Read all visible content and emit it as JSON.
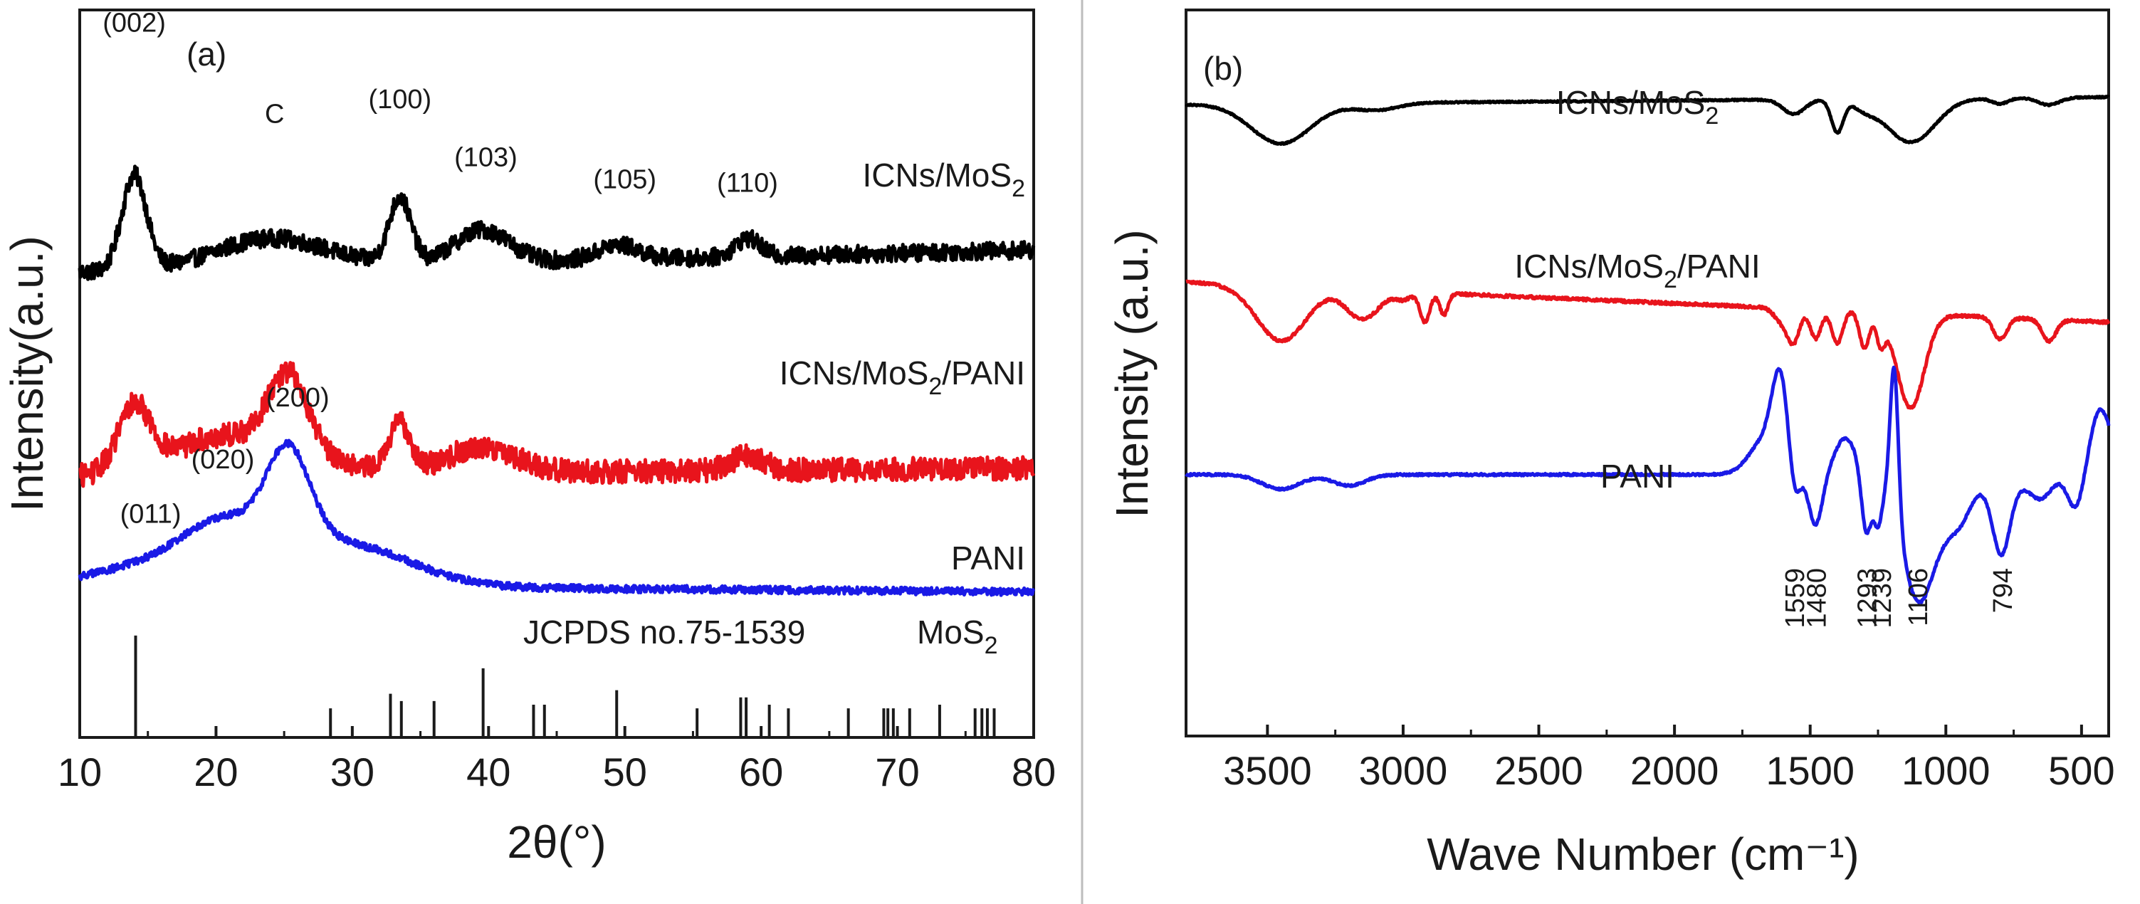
{
  "figure": {
    "divider_color": "#bdbdbd"
  },
  "chart_data": [
    {
      "type": "line",
      "panel_label": "(a)",
      "xlabel": "2θ(°)",
      "ylabel": "Intensity(a.u.)",
      "xlim": [
        10,
        80
      ],
      "ylim": [
        0,
        1
      ],
      "xticks": [
        "10",
        "20",
        "30",
        "40",
        "50",
        "60",
        "70",
        "80"
      ],
      "series": [
        {
          "name": "ICNs/MoS",
          "sub": "2",
          "suffix": "",
          "color": "#000000",
          "baseline": 0.64,
          "end": 0.67,
          "noise": 0.012,
          "x_min": 10,
          "x_max": 80,
          "peaks": [
            [
              14,
              0.13,
              0.9
            ],
            [
              24,
              0.04,
              4.0
            ],
            [
              33.5,
              0.09,
              0.8
            ],
            [
              39.5,
              0.045,
              2.0
            ],
            [
              49.5,
              0.02,
              1.5
            ],
            [
              59,
              0.025,
              0.9
            ]
          ]
        },
        {
          "name": "ICNs/MoS",
          "sub": "2",
          "suffix": "/PANI",
          "color": "#e8141c",
          "baseline": 0.36,
          "end": 0.37,
          "noise": 0.016,
          "x_min": 10,
          "x_max": 80,
          "peaks": [
            [
              14,
              0.09,
              1.2
            ],
            [
              19,
              0.03,
              3.0
            ],
            [
              25.3,
              0.1,
              1.4
            ],
            [
              24,
              0.04,
              4.0
            ],
            [
              33.5,
              0.065,
              0.8
            ],
            [
              39.5,
              0.035,
              2.5
            ],
            [
              59,
              0.02,
              1.2
            ]
          ]
        },
        {
          "name": "PANI",
          "sub": "",
          "suffix": "",
          "color": "#1a1ae6",
          "baseline": 0.21,
          "end": 0.2,
          "noise": 0.005,
          "x_min": 10,
          "x_max": 80,
          "peaks": [
            [
              15,
              0.025,
              4.0
            ],
            [
              20.5,
              0.07,
              3.0
            ],
            [
              25.3,
              0.13,
              1.6
            ],
            [
              29,
              0.06,
              5.0
            ]
          ]
        }
      ],
      "peak_labels": [
        {
          "text": "(002)",
          "x": 14,
          "y": 0.97
        },
        {
          "text": "C",
          "x": 24.3,
          "y": 0.845
        },
        {
          "text": "(100)",
          "x": 33.5,
          "y": 0.865
        },
        {
          "text": "(103)",
          "x": 39.8,
          "y": 0.785
        },
        {
          "text": "(105)",
          "x": 50,
          "y": 0.755
        },
        {
          "text": "(110)",
          "x": 59,
          "y": 0.75
        },
        {
          "text": "(011)",
          "x": 15.2,
          "y": 0.295
        },
        {
          "text": "(020)",
          "x": 20.5,
          "y": 0.37
        },
        {
          "text": "(200)",
          "x": 26,
          "y": 0.455
        }
      ],
      "reference": {
        "label": "JCPDS no.75-1539",
        "material": "MoS",
        "material_sub": "2",
        "lines": [
          [
            14.1,
            0.14
          ],
          [
            28.4,
            0.04
          ],
          [
            32.8,
            0.06
          ],
          [
            33.6,
            0.05
          ],
          [
            36,
            0.05
          ],
          [
            39.6,
            0.095
          ],
          [
            43.3,
            0.045
          ],
          [
            44.1,
            0.045
          ],
          [
            49.4,
            0.065
          ],
          [
            55.3,
            0.04
          ],
          [
            58.5,
            0.055
          ],
          [
            58.9,
            0.055
          ],
          [
            60.6,
            0.045
          ],
          [
            62,
            0.04
          ],
          [
            66.4,
            0.04
          ],
          [
            69,
            0.04
          ],
          [
            69.3,
            0.04
          ],
          [
            69.7,
            0.04
          ],
          [
            70.9,
            0.04
          ],
          [
            73.1,
            0.045
          ],
          [
            75.7,
            0.04
          ],
          [
            76.2,
            0.04
          ],
          [
            76.6,
            0.04
          ],
          [
            77.1,
            0.04
          ]
        ]
      }
    },
    {
      "type": "line",
      "panel_label": "(b)",
      "xlabel": "Wave Number (cm⁻¹)",
      "ylabel": "Intensity (a.u.)",
      "xlim": [
        3800,
        400
      ],
      "ylim": [
        0,
        1
      ],
      "xticks": [
        "3500",
        "3000",
        "2500",
        "2000",
        "1500",
        "1000",
        "500"
      ],
      "series": [
        {
          "name": "ICNs/MoS",
          "sub": "2",
          "suffix": "",
          "color": "#000000",
          "baseline": 0.87,
          "end": 0.88,
          "noise": 0.001,
          "x_min": 3800,
          "x_max": 400,
          "peaks": [
            [
              3450,
              -0.055,
              110
            ],
            [
              3100,
              -0.01,
              80
            ],
            [
              1560,
              -0.02,
              40
            ],
            [
              1400,
              -0.045,
              22
            ],
            [
              1300,
              -0.01,
              40
            ],
            [
              1130,
              -0.06,
              90
            ],
            [
              620,
              -0.01,
              40
            ],
            [
              800,
              -0.008,
              30
            ]
          ]
        },
        {
          "name": "ICNs/MoS",
          "sub": "2",
          "suffix": "/PANI",
          "color": "#e8141c",
          "baseline": 0.625,
          "end": 0.57,
          "noise": 0.002,
          "x_min": 3800,
          "x_max": 400,
          "peaks": [
            [
              3450,
              -0.075,
              90
            ],
            [
              3150,
              -0.04,
              60
            ],
            [
              2920,
              -0.04,
              18
            ],
            [
              2850,
              -0.03,
              15
            ],
            [
              1560,
              -0.04,
              22
            ],
            [
              1480,
              -0.04,
              20
            ],
            [
              1400,
              -0.045,
              20
            ],
            [
              1300,
              -0.05,
              18
            ],
            [
              1240,
              -0.04,
              15
            ],
            [
              1130,
              -0.13,
              50
            ],
            [
              800,
              -0.03,
              25
            ],
            [
              620,
              -0.03,
              25
            ],
            [
              1600,
              -0.02,
              30
            ],
            [
              3000,
              -0.01,
              30
            ]
          ]
        },
        {
          "name": "PANI",
          "sub": "",
          "suffix": "",
          "color": "#1a1ae6",
          "baseline": 0.36,
          "end": 0.36,
          "noise": 0.0015,
          "x_min": 3800,
          "x_max": 400,
          "peaks": [
            [
              3450,
              -0.02,
              70
            ],
            [
              3200,
              -0.015,
              60
            ],
            [
              1610,
              0.11,
              30
            ],
            [
              1660,
              0.05,
              60
            ],
            [
              1559,
              -0.05,
              20
            ],
            [
              1480,
              -0.07,
              25
            ],
            [
              1370,
              0.05,
              40
            ],
            [
              1293,
              -0.085,
              18
            ],
            [
              1250,
              -0.06,
              15
            ],
            [
              1190,
              0.2,
              15
            ],
            [
              1106,
              -0.14,
              55
            ],
            [
              950,
              -0.08,
              120
            ],
            [
              880,
              0.04,
              40
            ],
            [
              794,
              -0.08,
              30
            ],
            [
              650,
              -0.03,
              40
            ],
            [
              520,
              -0.05,
              30
            ],
            [
              430,
              0.09,
              40
            ]
          ]
        }
      ],
      "band_labels": [
        {
          "text": "1559",
          "x": 1559
        },
        {
          "text": "1480",
          "x": 1480
        },
        {
          "text": "1293",
          "x": 1293
        },
        {
          "text": "1239",
          "x": 1239
        },
        {
          "text": "1106",
          "x": 1106
        },
        {
          "text": "794",
          "x": 794
        }
      ]
    }
  ]
}
